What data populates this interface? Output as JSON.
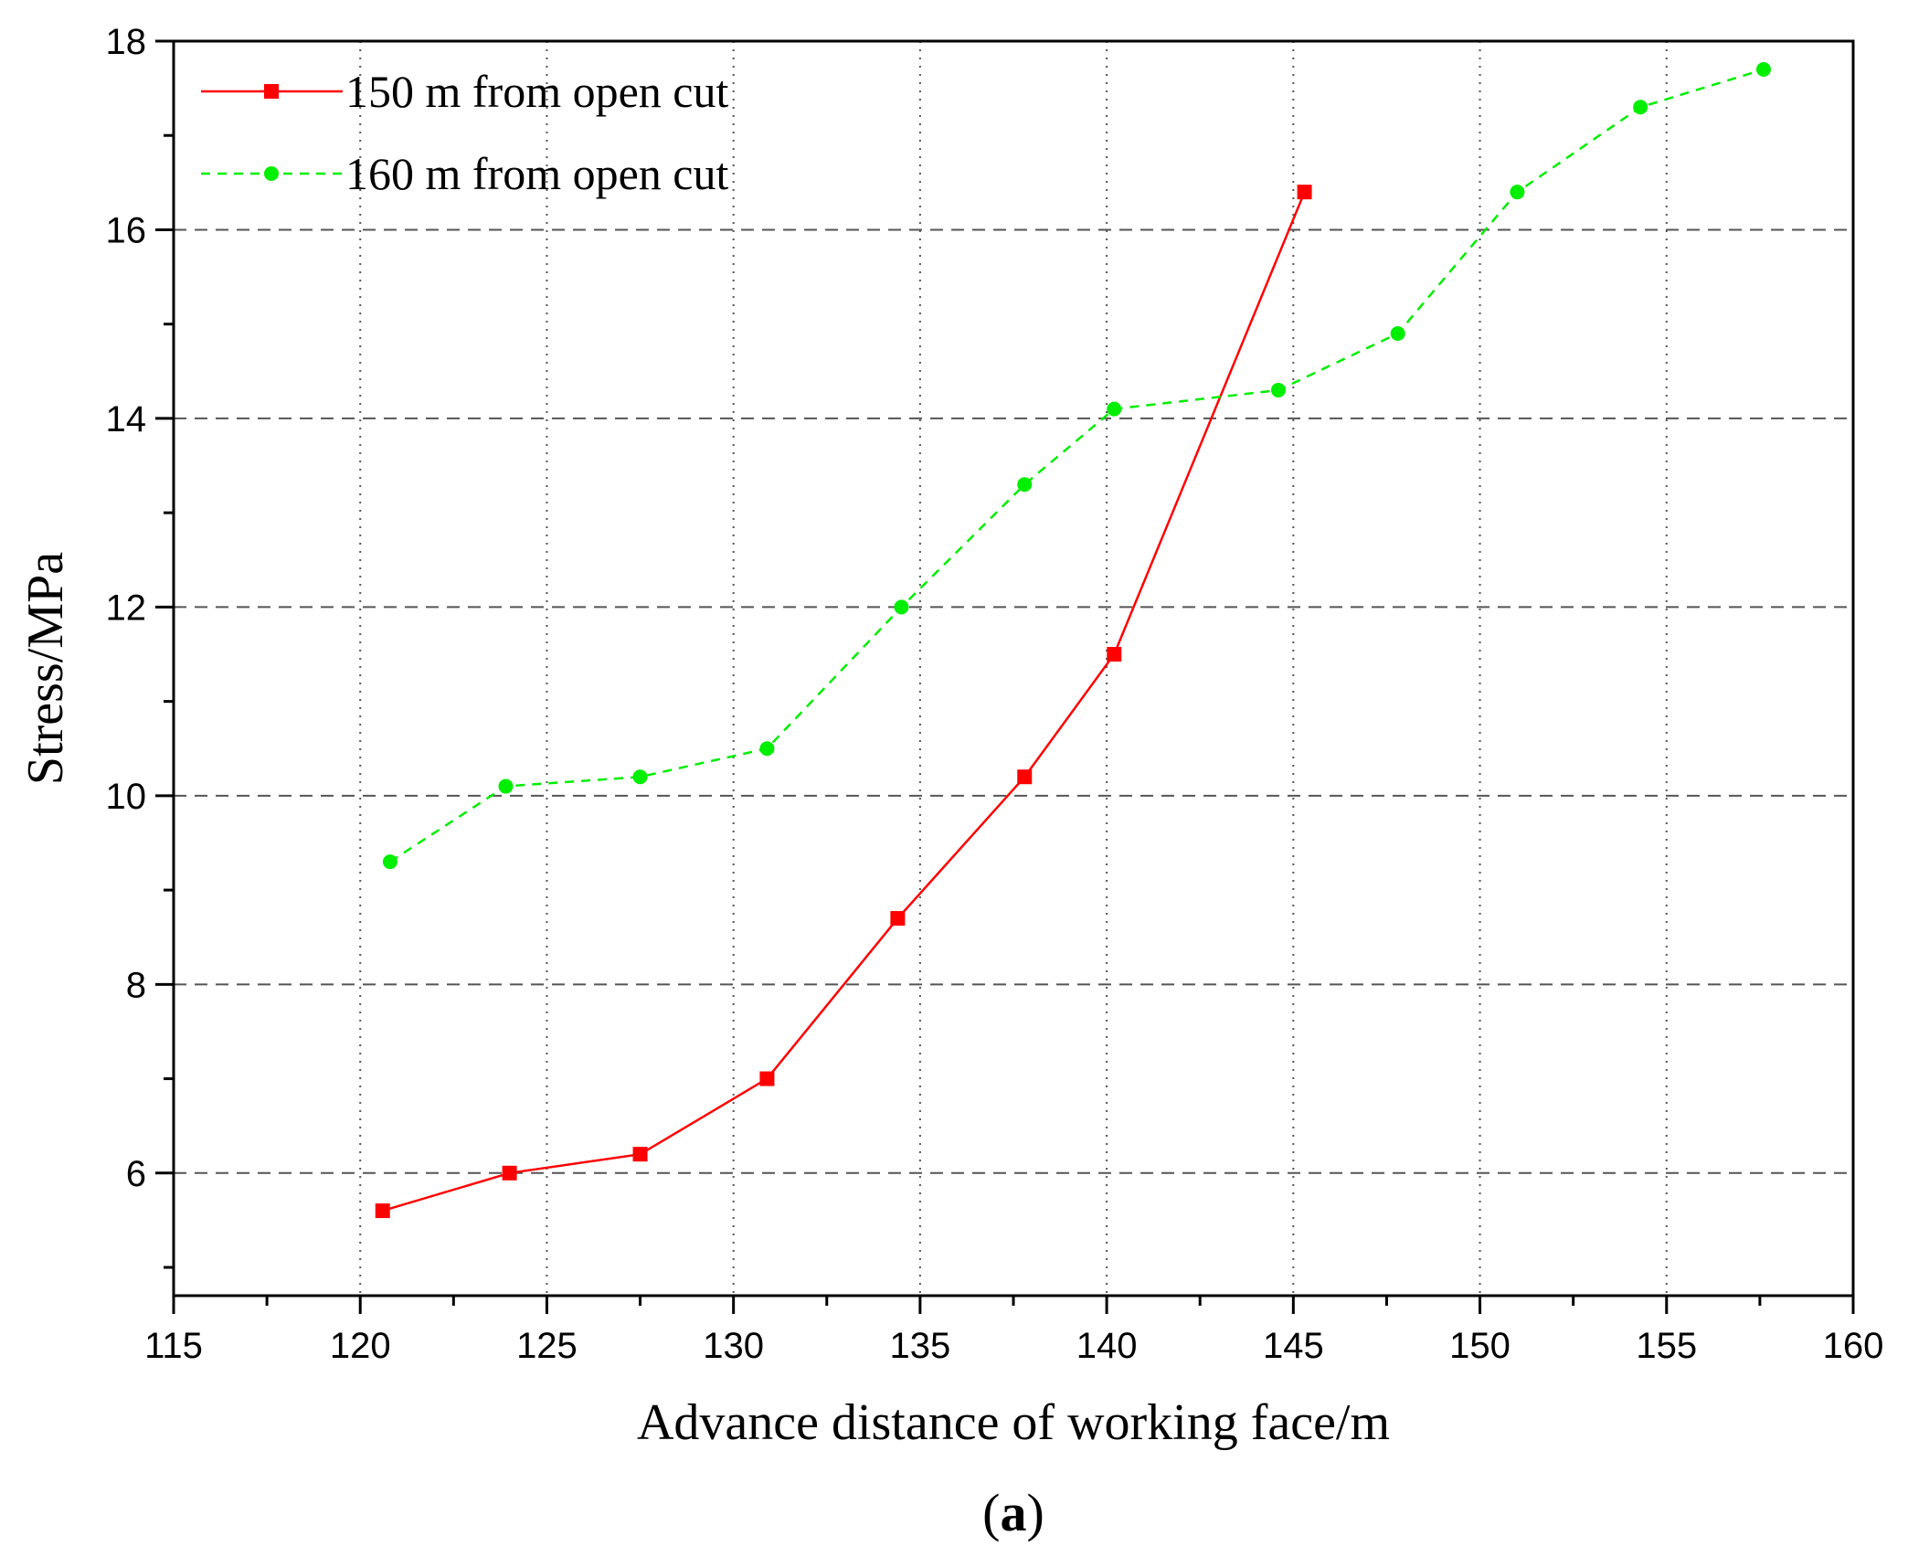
{
  "chart_data": {
    "type": "line",
    "title": "",
    "xlabel": "Advance distance of working face/m",
    "ylabel": "Stress/MPa",
    "caption_prefix": "(",
    "caption_letter": "a",
    "caption_suffix": ")",
    "xlim": [
      115,
      160
    ],
    "ylim": [
      4.7,
      18
    ],
    "xticks": [
      115,
      120,
      125,
      130,
      135,
      140,
      145,
      150,
      155,
      160
    ],
    "yticks": [
      6,
      8,
      10,
      12,
      14,
      16,
      18
    ],
    "grid": true,
    "legend_position": "top-left",
    "series": [
      {
        "name": "150 m from open cut",
        "color": "#ff0000",
        "line_style": "solid",
        "marker": "square",
        "x": [
          120.6,
          124.0,
          127.5,
          130.9,
          134.4,
          137.8,
          140.2,
          145.3
        ],
        "y": [
          5.6,
          6.0,
          6.2,
          7.0,
          8.7,
          10.2,
          11.5,
          16.4
        ]
      },
      {
        "name": "160 m from open cut",
        "color": "#00ee00",
        "line_style": "dashed",
        "marker": "circle",
        "x": [
          120.8,
          123.9,
          127.5,
          130.9,
          134.5,
          137.8,
          140.2,
          144.6,
          147.8,
          151.0,
          154.3,
          157.6
        ],
        "y": [
          9.3,
          10.1,
          10.2,
          10.5,
          12.0,
          13.3,
          14.1,
          14.3,
          14.9,
          16.4,
          17.3,
          17.7
        ]
      }
    ]
  }
}
